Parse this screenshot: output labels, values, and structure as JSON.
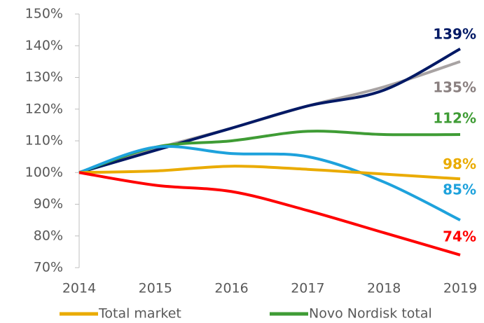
{
  "chart_data": {
    "type": "line",
    "x": [
      2014,
      2015,
      2016,
      2017,
      2018,
      2019
    ],
    "xlim": [
      2014,
      2019
    ],
    "xticks": [
      2014,
      2015,
      2016,
      2017,
      2018,
      2019
    ],
    "ylim": [
      70,
      150
    ],
    "yticks": [
      {
        "value": 70,
        "label": "70%"
      },
      {
        "value": 80,
        "label": "80%"
      },
      {
        "value": 90,
        "label": "90%"
      },
      {
        "value": 100,
        "label": "100%"
      },
      {
        "value": 110,
        "label": "110%"
      },
      {
        "value": 120,
        "label": "120%"
      },
      {
        "value": 130,
        "label": "130%"
      },
      {
        "value": 140,
        "label": "140%"
      },
      {
        "value": 150,
        "label": "150%"
      }
    ],
    "grid": false,
    "series": [
      {
        "color": "#a8a3a3",
        "label_color": "#8a8080",
        "values": [
          100,
          107.5,
          114,
          121,
          127,
          135
        ],
        "value_labels": [
          null,
          null,
          null,
          null,
          null,
          "135%"
        ]
      },
      {
        "color": "#001965",
        "values": [
          100,
          107,
          114,
          121,
          126,
          139
        ],
        "value_labels": [
          null,
          null,
          null,
          null,
          null,
          "139%"
        ]
      },
      {
        "name": "Novo Nordisk total",
        "color": "#3f9c35",
        "values": [
          100,
          108,
          110,
          113,
          112,
          112
        ],
        "value_labels": [
          null,
          null,
          null,
          null,
          null,
          "112%"
        ]
      },
      {
        "color": "#1ea2dc",
        "values": [
          100,
          108,
          106,
          105,
          97,
          85
        ],
        "value_labels": [
          null,
          null,
          null,
          null,
          null,
          "85%"
        ]
      },
      {
        "name": "Total market",
        "color": "#eaab00",
        "values": [
          100,
          100.5,
          102,
          101,
          99.5,
          98
        ],
        "value_labels": [
          null,
          null,
          null,
          null,
          null,
          "98%"
        ]
      },
      {
        "color": "#ff0000",
        "values": [
          100,
          96,
          94,
          88,
          81,
          74
        ],
        "value_labels": [
          null,
          null,
          null,
          null,
          null,
          "74%"
        ]
      }
    ]
  }
}
